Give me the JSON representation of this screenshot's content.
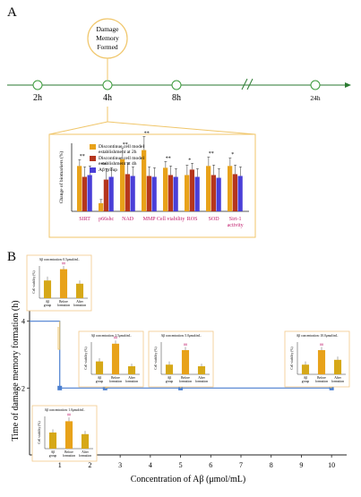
{
  "panel_a": {
    "letter": "A",
    "event_label": [
      "Damage",
      "Memory",
      "Formed"
    ],
    "timeline": [
      "2h",
      "4h",
      "8h",
      "24h"
    ],
    "chart_data": {
      "type": "bar",
      "ylabel": "Change of biomarkers (%)",
      "categories": [
        "SIRT",
        "p66shc",
        "NAD",
        "MMP",
        "Cell viability",
        "ROS",
        "SOD",
        "Sirt-1 activity"
      ],
      "significance": [
        "**",
        "**",
        "**",
        "**",
        "**",
        "*",
        "**",
        "*"
      ],
      "series": [
        {
          "name": "Discontinue cell model establishment at 2h",
          "color": "#e8a21a",
          "values": [
            100,
            18,
            115,
            135,
            96,
            80,
            100,
            100
          ]
        },
        {
          "name": "Discontinue cell model establishment at 4h",
          "color": "#b5361d",
          "values": [
            76,
            70,
            82,
            78,
            80,
            92,
            80,
            82
          ]
        },
        {
          "name": "Aβ group",
          "color": "#4a3fd8",
          "values": [
            80,
            76,
            78,
            76,
            76,
            76,
            74,
            78
          ]
        }
      ],
      "errors": [
        [
          14,
          8,
          25,
          30,
          14,
          22,
          20,
          18
        ],
        [
          22,
          24,
          25,
          20,
          20,
          14,
          22,
          20
        ],
        [
          20,
          20,
          20,
          20,
          18,
          18,
          20,
          20
        ]
      ],
      "ylim": [
        0,
        150
      ]
    }
  },
  "panel_b": {
    "letter": "B",
    "chart_data": {
      "type": "line",
      "xlabel": "Concentration of Aβ (μmol/mL)",
      "ylabel": "Time of damage memory formation (h)",
      "x_ticks": [
        1,
        2,
        3,
        4,
        5,
        6,
        7,
        8,
        9,
        10
      ],
      "y_ticks": [
        2,
        4
      ],
      "x": [
        0,
        1,
        1,
        2.5,
        5,
        10
      ],
      "y": [
        4,
        4,
        2,
        2,
        2,
        2
      ],
      "points": [
        {
          "x": 1,
          "y": 2
        },
        {
          "x": 2.5,
          "y": 2
        },
        {
          "x": 5,
          "y": 2
        },
        {
          "x": 10,
          "y": 2
        }
      ],
      "xlim": [
        0,
        10.5
      ],
      "ylim": [
        0,
        4.5
      ]
    },
    "insets": [
      {
        "title": "Aβ concentration: 0.5μmol/mL",
        "values": [
          0.55,
          0.9,
          0.45
        ],
        "errors": [
          0.12,
          0.1,
          0.1
        ]
      },
      {
        "title": "Aβ concentration: 2.5μmol/mL",
        "values": [
          0.4,
          0.95,
          0.25
        ],
        "errors": [
          0.1,
          0.1,
          0.08
        ]
      },
      {
        "title": "Aβ concentration: 5.0μmol/mL",
        "values": [
          0.3,
          0.75,
          0.25
        ],
        "errors": [
          0.1,
          0.1,
          0.08
        ]
      },
      {
        "title": "Aβ concentration: 10.0μmol/mL",
        "values": [
          0.3,
          0.75,
          0.45
        ],
        "errors": [
          0.1,
          0.1,
          0.1
        ]
      },
      {
        "title": "Aβ concentration: 1.0μmol/mL",
        "values": [
          0.5,
          0.85,
          0.45
        ],
        "errors": [
          0.1,
          0.12,
          0.1
        ]
      }
    ],
    "inset_labels": {
      "ylabel": "Cell viability (%)",
      "categories": [
        [
          "Aβ",
          "group"
        ],
        [
          "Before",
          "formation"
        ],
        [
          "After",
          "formation"
        ]
      ],
      "marks": [
        "#",
        "##"
      ]
    },
    "colors": {
      "line": "#4a7fd0",
      "frame": "#f0c66a",
      "inset_bar": "#d6a818",
      "inset_bar_hi": "#e8a21a",
      "inset_border": "#f2c98a",
      "axis": "#222222",
      "timeline": "#2a7a30",
      "node": "#3a9a3a"
    }
  }
}
